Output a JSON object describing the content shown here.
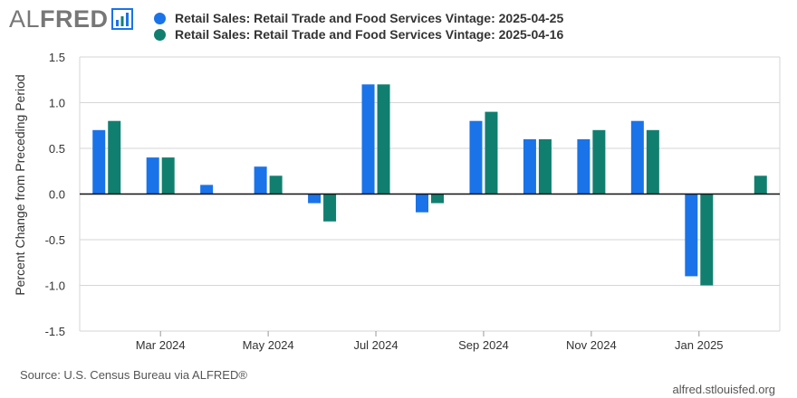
{
  "header": {
    "logo_al": "AL",
    "logo_fred": "FRED"
  },
  "chart_data": {
    "type": "bar",
    "ylabel": "Percent Change from Preceding Period",
    "ylim": [
      -1.5,
      1.5
    ],
    "yticks": [
      "1.5",
      "1.0",
      "0.5",
      "0.0",
      "-0.5",
      "-1.0",
      "-1.5"
    ],
    "ytick_values": [
      1.5,
      1.0,
      0.5,
      0.0,
      -0.5,
      -1.0,
      -1.5
    ],
    "categories": [
      "Feb 2024",
      "Mar 2024",
      "Apr 2024",
      "May 2024",
      "Jun 2024",
      "Jul 2024",
      "Aug 2024",
      "Sep 2024",
      "Oct 2024",
      "Nov 2024",
      "Dec 2024",
      "Jan 2025",
      "Feb 2025"
    ],
    "xtick_labels": [
      "Mar 2024",
      "May 2024",
      "Jul 2024",
      "Sep 2024",
      "Nov 2024",
      "Jan 2025"
    ],
    "series": [
      {
        "name": "Retail Sales: Retail Trade and Food Services Vintage: 2025-04-25",
        "color": "#1a73e8",
        "values": [
          0.7,
          0.4,
          0.1,
          0.3,
          -0.1,
          1.2,
          -0.2,
          0.8,
          0.6,
          0.6,
          0.8,
          -0.9,
          null
        ]
      },
      {
        "name": "Retail Sales: Retail Trade and Food Services Vintage: 2025-04-16",
        "color": "#117f6f",
        "values": [
          0.8,
          0.4,
          null,
          0.2,
          -0.3,
          1.2,
          -0.1,
          0.9,
          0.6,
          0.7,
          0.7,
          -1.0,
          0.2
        ]
      }
    ],
    "grid": true,
    "legend_position": "top-left"
  },
  "footer": {
    "source": "Source: U.S. Census Bureau via ALFRED®",
    "site": "alfred.stlouisfed.org"
  }
}
